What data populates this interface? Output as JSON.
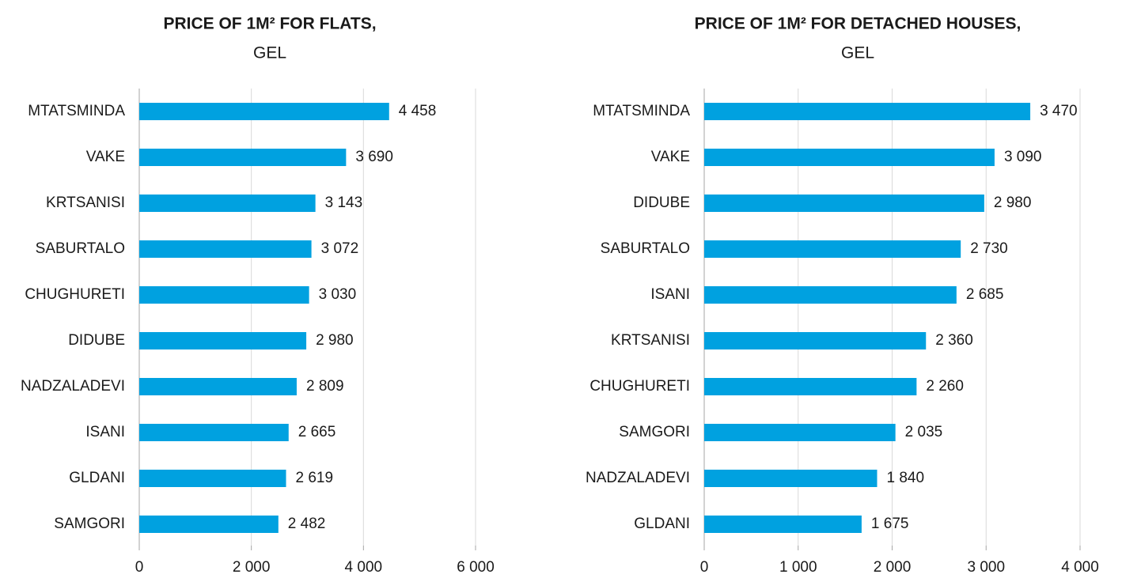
{
  "chart_data": [
    {
      "type": "bar",
      "orientation": "horizontal",
      "title": "PRICE OF 1M² FOR FLATS,",
      "subtitle": "GEL",
      "categories": [
        "MTATSMINDA",
        "VAKE",
        "KRTSANISI",
        "SABURTALO",
        "CHUGHURETI",
        "DIDUBE",
        "NADZALADEVI",
        "ISANI",
        "GLDANI",
        "SAMGORI"
      ],
      "values": [
        4458,
        3690,
        3143,
        3072,
        3030,
        2980,
        2809,
        2665,
        2619,
        2482
      ],
      "value_labels": [
        "4 458",
        "3 690",
        "3 143",
        "3 072",
        "3 030",
        "2 980",
        "2 809",
        "2 665",
        "2 619",
        "2 482"
      ],
      "color": "#00a1e0",
      "xlim": [
        0,
        6000
      ],
      "xticks": [
        0,
        {
          "value": 2000,
          "label": "2 000"
        },
        {
          "value": 4000,
          "label": "4 000"
        },
        {
          "value": 6000,
          "label": "6 000"
        }
      ],
      "grid": true
    },
    {
      "type": "bar",
      "orientation": "horizontal",
      "title": "PRICE OF 1M² FOR DETACHED HOUSES,",
      "subtitle": "GEL",
      "categories": [
        "MTATSMINDA",
        "VAKE",
        "DIDUBE",
        "SABURTALO",
        "ISANI",
        "KRTSANISI",
        "CHUGHURETI",
        "SAMGORI",
        "NADZALADEVI",
        "GLDANI"
      ],
      "values": [
        3470,
        3090,
        2980,
        2730,
        2685,
        2360,
        2260,
        2035,
        1840,
        1675
      ],
      "value_labels": [
        "3 470",
        "3 090",
        "2 980",
        "2 730",
        "2 685",
        "2 360",
        "2 260",
        "2 035",
        "1 840",
        "1 675"
      ],
      "color": "#00a1e0",
      "xlim": [
        0,
        4000
      ],
      "xticks": [
        0,
        {
          "value": 1000,
          "label": "1 000"
        },
        {
          "value": 2000,
          "label": "2 000"
        },
        {
          "value": 3000,
          "label": "3 000"
        },
        {
          "value": 4000,
          "label": "4 000"
        }
      ],
      "grid": true
    }
  ]
}
